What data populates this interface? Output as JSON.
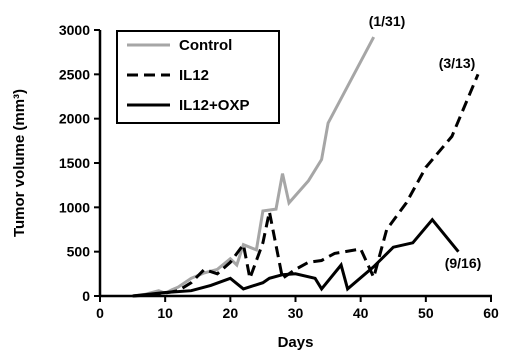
{
  "chart_data": {
    "type": "line",
    "xlabel": "Days",
    "ylabel": "Tumor volume (mm³)",
    "xlim": [
      0,
      60
    ],
    "ylim": [
      0,
      3000
    ],
    "xticks": [
      0,
      10,
      20,
      30,
      40,
      50,
      60
    ],
    "yticks": [
      0,
      500,
      1000,
      1500,
      2000,
      2500,
      3000
    ],
    "grid": false,
    "legend_position": "top-left",
    "series": [
      {
        "name": "Control",
        "color": "#a6a6a6",
        "dash": "solid",
        "points": [
          [
            5,
            0
          ],
          [
            7,
            20
          ],
          [
            9,
            60
          ],
          [
            10,
            30
          ],
          [
            11,
            70
          ],
          [
            12,
            100
          ],
          [
            14,
            200
          ],
          [
            16,
            260
          ],
          [
            18,
            300
          ],
          [
            20,
            420
          ],
          [
            21,
            350
          ],
          [
            22,
            580
          ],
          [
            24,
            520
          ],
          [
            25,
            960
          ],
          [
            27,
            980
          ],
          [
            28,
            1380
          ],
          [
            29,
            1050
          ],
          [
            32,
            1300
          ],
          [
            34,
            1540
          ],
          [
            35,
            1950
          ],
          [
            42,
            2920
          ]
        ]
      },
      {
        "name": "IL12",
        "color": "#000000",
        "dash": "dashed",
        "points": [
          [
            5,
            0
          ],
          [
            9,
            20
          ],
          [
            12,
            60
          ],
          [
            14,
            150
          ],
          [
            16,
            300
          ],
          [
            18,
            250
          ],
          [
            20,
            380
          ],
          [
            22,
            580
          ],
          [
            23,
            200
          ],
          [
            25,
            600
          ],
          [
            26,
            950
          ],
          [
            28,
            200
          ],
          [
            30,
            300
          ],
          [
            32,
            380
          ],
          [
            34,
            400
          ],
          [
            36,
            480
          ],
          [
            40,
            530
          ],
          [
            42,
            210
          ],
          [
            44,
            750
          ],
          [
            47,
            1050
          ],
          [
            50,
            1450
          ],
          [
            54,
            1800
          ],
          [
            58,
            2500
          ]
        ]
      },
      {
        "name": "IL12+OXP",
        "color": "#000000",
        "dash": "solid",
        "points": [
          [
            5,
            0
          ],
          [
            10,
            40
          ],
          [
            14,
            60
          ],
          [
            17,
            120
          ],
          [
            20,
            200
          ],
          [
            22,
            80
          ],
          [
            25,
            150
          ],
          [
            26,
            200
          ],
          [
            28,
            240
          ],
          [
            30,
            250
          ],
          [
            33,
            200
          ],
          [
            34,
            80
          ],
          [
            37,
            350
          ],
          [
            38,
            80
          ],
          [
            42,
            330
          ],
          [
            45,
            550
          ],
          [
            48,
            600
          ],
          [
            51,
            860
          ],
          [
            55,
            500
          ]
        ]
      }
    ],
    "annotations": [
      {
        "text": "(1/31)",
        "series": "Control"
      },
      {
        "text": "(3/13)",
        "series": "IL12"
      },
      {
        "text": "(9/16)",
        "series": "IL12+OXP"
      }
    ]
  }
}
